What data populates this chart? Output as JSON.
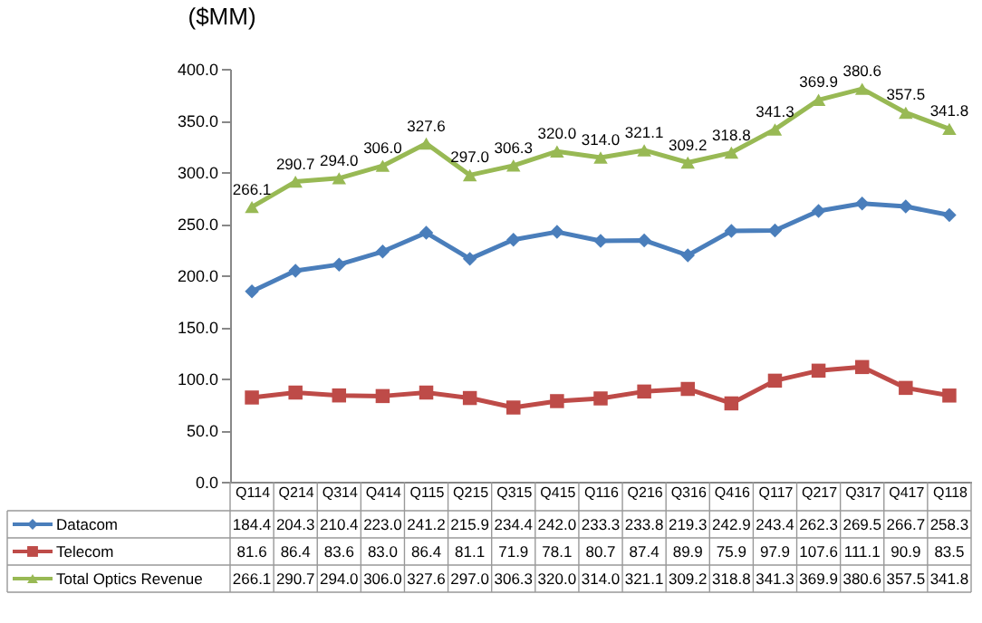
{
  "chart_data": {
    "type": "line",
    "ylabel": "($MM)",
    "categories": [
      "Q114",
      "Q214",
      "Q314",
      "Q414",
      "Q115",
      "Q215",
      "Q315",
      "Q415",
      "Q116",
      "Q216",
      "Q316",
      "Q416",
      "Q117",
      "Q217",
      "Q317",
      "Q417",
      "Q118"
    ],
    "series": [
      {
        "name": "Datacom",
        "color": "#4a7ebb",
        "marker": "diamond",
        "values": [
          184.4,
          204.3,
          210.4,
          223.0,
          241.2,
          215.9,
          234.4,
          242.0,
          233.3,
          233.8,
          219.3,
          242.9,
          243.4,
          262.3,
          269.5,
          266.7,
          258.3
        ],
        "value_labels": [
          "184.4",
          "204.3",
          "210.4",
          "223.0",
          "241.2",
          "215.9",
          "234.4",
          "242.0",
          "233.3",
          "233.8",
          "219.3",
          "242.9",
          "243.4",
          "262.3",
          "269.5",
          "266.7",
          "258.3"
        ]
      },
      {
        "name": "Telecom",
        "color": "#be4b48",
        "marker": "square",
        "values": [
          81.6,
          86.4,
          83.6,
          83.0,
          86.4,
          81.1,
          71.9,
          78.1,
          80.7,
          87.4,
          89.9,
          75.9,
          97.9,
          107.6,
          111.1,
          90.9,
          83.5
        ],
        "value_labels": [
          "81.6",
          "86.4",
          "83.6",
          "83.0",
          "86.4",
          "81.1",
          "71.9",
          "78.1",
          "80.7",
          "87.4",
          "89.9",
          "75.9",
          "97.9",
          "107.6",
          "111.1",
          "90.9",
          "83.5"
        ]
      },
      {
        "name": "Total Optics Revenue",
        "color": "#98b954",
        "marker": "triangle",
        "data_labels": true,
        "values": [
          266.1,
          290.7,
          294.0,
          306.0,
          327.6,
          297.0,
          306.3,
          320.0,
          314.0,
          321.1,
          309.2,
          318.8,
          341.3,
          369.9,
          380.6,
          357.5,
          341.8
        ],
        "value_labels": [
          "266.1",
          "290.7",
          "294.0",
          "306.0",
          "327.6",
          "297.0",
          "306.3",
          "320.0",
          "314.0",
          "321.1",
          "309.2",
          "318.8",
          "341.3",
          "369.9",
          "380.6",
          "357.5",
          "341.8"
        ]
      }
    ],
    "ylim": [
      0,
      400
    ],
    "yticks": [
      {
        "value": 0,
        "label": "0.0"
      },
      {
        "value": 50,
        "label": "50.0"
      },
      {
        "value": 100,
        "label": "100.0"
      },
      {
        "value": 150,
        "label": "150.0"
      },
      {
        "value": 200,
        "label": "200.0"
      },
      {
        "value": 250,
        "label": "250.0"
      },
      {
        "value": 300,
        "label": "300.0"
      },
      {
        "value": 350,
        "label": "350.0"
      },
      {
        "value": 400,
        "label": "400.0"
      }
    ],
    "legend": "bottom",
    "line_style": "solid"
  }
}
